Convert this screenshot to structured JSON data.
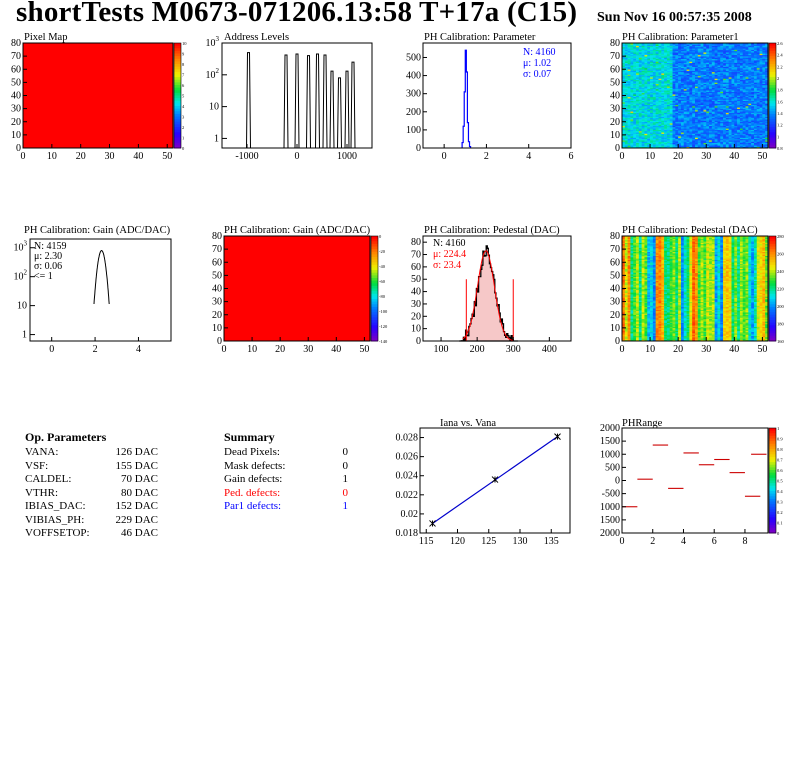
{
  "header": {
    "title": "shortTests M0673-071206.13:58 T+17a (C15)",
    "date": "Sun Nov 16 00:57:35 2008"
  },
  "colors": {
    "hist_red": "#ff0000",
    "fit_red": "#ff0000",
    "stat_blue": "#0000ff",
    "fit_blue": "#0000cc",
    "histline_black": "#000000",
    "pedestal_fill": "#f6c8c8"
  },
  "op_parameters": {
    "title": "Op. Parameters",
    "rows": [
      {
        "name": "VANA:",
        "value": "126 DAC"
      },
      {
        "name": "VSF:",
        "value": "155 DAC"
      },
      {
        "name": "CALDEL:",
        "value": "70 DAC"
      },
      {
        "name": "VTHR:",
        "value": "80 DAC"
      },
      {
        "name": "IBIAS_DAC:",
        "value": "152 DAC"
      },
      {
        "name": "VIBIAS_PH:",
        "value": "229 DAC"
      },
      {
        "name": "VOFFSETOP:",
        "value": "46 DAC"
      }
    ]
  },
  "summary": {
    "title": "Summary",
    "rows": [
      {
        "name": "Dead Pixels:",
        "value": "0",
        "color": "black"
      },
      {
        "name": "Mask defects:",
        "value": "0",
        "color": "black"
      },
      {
        "name": "Gain defects:",
        "value": "1",
        "color": "black"
      },
      {
        "name": "Ped. defects:",
        "value": "0",
        "color": "red"
      },
      {
        "name": "Par1 defects:",
        "value": "1",
        "color": "blue"
      }
    ]
  },
  "chart_data": [
    {
      "id": "pixel-map",
      "type": "heatmap",
      "title": "Pixel Map",
      "xlim": [
        0,
        52
      ],
      "ylim": [
        0,
        80
      ],
      "xticks": [
        "0",
        "10",
        "20",
        "30",
        "40",
        "50"
      ],
      "yticks": [
        "0",
        "10",
        "20",
        "30",
        "40",
        "50",
        "60",
        "70",
        "80"
      ],
      "palette": "rainbow",
      "fill": "uniform-max",
      "zticks": [
        "10",
        "9",
        "8",
        "7",
        "6",
        "5",
        "4",
        "3",
        "2",
        "1",
        "0"
      ]
    },
    {
      "id": "address-levels",
      "type": "line",
      "title": "Address Levels",
      "xlim": [
        -1500,
        1500
      ],
      "ylim_log": [
        0.5,
        1000
      ],
      "xticks": [
        "-1000",
        "0",
        "1000"
      ],
      "yticks": [
        "1",
        "10",
        "10^2",
        "10^3"
      ],
      "peaks": [
        {
          "x": -970,
          "y": 500
        },
        {
          "x": -220,
          "y": 420
        },
        {
          "x": 0,
          "y": 450
        },
        {
          "x": 230,
          "y": 400
        },
        {
          "x": 410,
          "y": 450
        },
        {
          "x": 560,
          "y": 420
        },
        {
          "x": 700,
          "y": 130
        },
        {
          "x": 850,
          "y": 80
        },
        {
          "x": 1000,
          "y": 130
        },
        {
          "x": 1120,
          "y": 250
        }
      ]
    },
    {
      "id": "ph-parameter",
      "type": "bar",
      "title": "PH Calibration: Parameter",
      "xlim": [
        -1,
        6
      ],
      "ylim": [
        0,
        580
      ],
      "xticks": [
        "0",
        "2",
        "4",
        "6"
      ],
      "yticks": [
        "0",
        "100",
        "200",
        "300",
        "400",
        "500"
      ],
      "bins": [
        {
          "x": 0.875,
          "y": 30
        },
        {
          "x": 0.925,
          "y": 120
        },
        {
          "x": 0.975,
          "y": 310
        },
        {
          "x": 1.025,
          "y": 540
        },
        {
          "x": 1.075,
          "y": 420
        },
        {
          "x": 1.125,
          "y": 140
        },
        {
          "x": 1.175,
          "y": 35
        },
        {
          "x": 1.225,
          "y": 8
        }
      ],
      "stats": {
        "n": "N: 4160",
        "mean": "μ: 1.02",
        "sigma": "σ: 0.07"
      }
    },
    {
      "id": "ph-parameter1",
      "type": "heatmap",
      "title": "PH Calibration: Parameter1",
      "xlim": [
        0,
        52
      ],
      "ylim": [
        0,
        80
      ],
      "xticks": [
        "0",
        "10",
        "20",
        "30",
        "40",
        "50"
      ],
      "yticks": [
        "0",
        "10",
        "20",
        "30",
        "40",
        "50",
        "60",
        "70",
        "80"
      ],
      "palette": "rainbow",
      "fill": "blue-noise",
      "zticks": [
        "2.6",
        "2.4",
        "2.2",
        "2",
        "1.8",
        "1.6",
        "1.4",
        "1.2",
        "1",
        "0.8"
      ]
    },
    {
      "id": "ph-gain",
      "type": "line",
      "title": "PH Calibration: Gain (ADC/DAC)",
      "xlim": [
        -1,
        5.5
      ],
      "ylim_log": [
        0.6,
        2000
      ],
      "xticks": [
        "0",
        "2",
        "4"
      ],
      "yticks": [
        "1",
        "10",
        "10^2",
        "10^3"
      ],
      "peak": {
        "center": 2.3,
        "height": 800,
        "width": 0.12
      },
      "stats": {
        "n": "N: 4159",
        "mean": "μ: 2.30",
        "sigma": "σ: 0.06",
        "extra": "<= 1"
      }
    },
    {
      "id": "ph-gain-map",
      "type": "heatmap",
      "title": "PH Calibration: Gain (ADC/DAC)",
      "xlim": [
        0,
        52
      ],
      "ylim": [
        0,
        80
      ],
      "xticks": [
        "0",
        "10",
        "20",
        "30",
        "40",
        "50"
      ],
      "yticks": [
        "0",
        "10",
        "20",
        "30",
        "40",
        "50",
        "60",
        "70",
        "80"
      ],
      "palette": "rainbow",
      "fill": "uniform-max",
      "zticks": [
        "0",
        "-20",
        "-40",
        "-60",
        "-80",
        "-100",
        "-120",
        "-140"
      ]
    },
    {
      "id": "ph-pedestal",
      "type": "bar",
      "title": "PH Calibration: Pedestal (DAC)",
      "xlim": [
        50,
        460
      ],
      "ylim": [
        0,
        85
      ],
      "xticks": [
        "100",
        "200",
        "300",
        "400"
      ],
      "yticks": [
        "0",
        "10",
        "20",
        "30",
        "40",
        "50",
        "60",
        "70",
        "80"
      ],
      "gauss": {
        "mean": 224.4,
        "sigma": 23.4,
        "peak": 73
      },
      "cut_lines": [
        170,
        300
      ],
      "stats": {
        "n": "N: 4160",
        "mean": "μ: 224.4",
        "sigma": "σ: 23.4"
      }
    },
    {
      "id": "ph-pedestal-map",
      "type": "heatmap",
      "title": "PH Calibration: Pedestal (DAC)",
      "xlim": [
        0,
        52
      ],
      "ylim": [
        0,
        80
      ],
      "xticks": [
        "0",
        "10",
        "20",
        "30",
        "40",
        "50"
      ],
      "yticks": [
        "0",
        "10",
        "20",
        "30",
        "40",
        "50",
        "60",
        "70",
        "80"
      ],
      "palette": "rainbow",
      "fill": "column-bands",
      "zticks": [
        "280",
        "260",
        "240",
        "220",
        "200",
        "180",
        "160"
      ]
    },
    {
      "id": "iana-vana",
      "type": "line",
      "title": "Iana vs. Vana",
      "xlim": [
        114,
        138
      ],
      "ylim": [
        0.018,
        0.029
      ],
      "xticks": [
        "115",
        "120",
        "125",
        "130",
        "135"
      ],
      "yticks": [
        "0.018",
        "0.02",
        "0.022",
        "0.024",
        "0.026",
        "0.028"
      ],
      "x": [
        116,
        126,
        136
      ],
      "y": [
        0.019,
        0.0236,
        0.0281
      ]
    },
    {
      "id": "ph-range",
      "type": "scatter",
      "title": "PHRange",
      "xlim": [
        0,
        9.5
      ],
      "ylim": [
        -2000,
        2000
      ],
      "xticks": [
        "0",
        "2",
        "4",
        "6",
        "8"
      ],
      "yticks": [
        "2000",
        "1500",
        "1000",
        "500",
        "0",
        "-500",
        "1000",
        "1500",
        "2000"
      ],
      "segments": [
        {
          "x0": 0,
          "x1": 1,
          "y": -1000
        },
        {
          "x0": 1,
          "x1": 2,
          "y": 50
        },
        {
          "x0": 2,
          "x1": 3,
          "y": 1350
        },
        {
          "x0": 3,
          "x1": 4,
          "y": -300
        },
        {
          "x0": 4,
          "x1": 5,
          "y": 1050
        },
        {
          "x0": 5,
          "x1": 6,
          "y": 600
        },
        {
          "x0": 6,
          "x1": 7,
          "y": 800
        },
        {
          "x0": 7,
          "x1": 8,
          "y": 300
        },
        {
          "x0": 8,
          "x1": 9,
          "y": -600
        },
        {
          "x0": 8.4,
          "x1": 9.4,
          "y": 1000
        }
      ],
      "zticks": [
        "1",
        "0.9",
        "0.8",
        "0.7",
        "0.6",
        "0.5",
        "0.4",
        "0.3",
        "0.2",
        "0.1",
        "0"
      ]
    }
  ]
}
